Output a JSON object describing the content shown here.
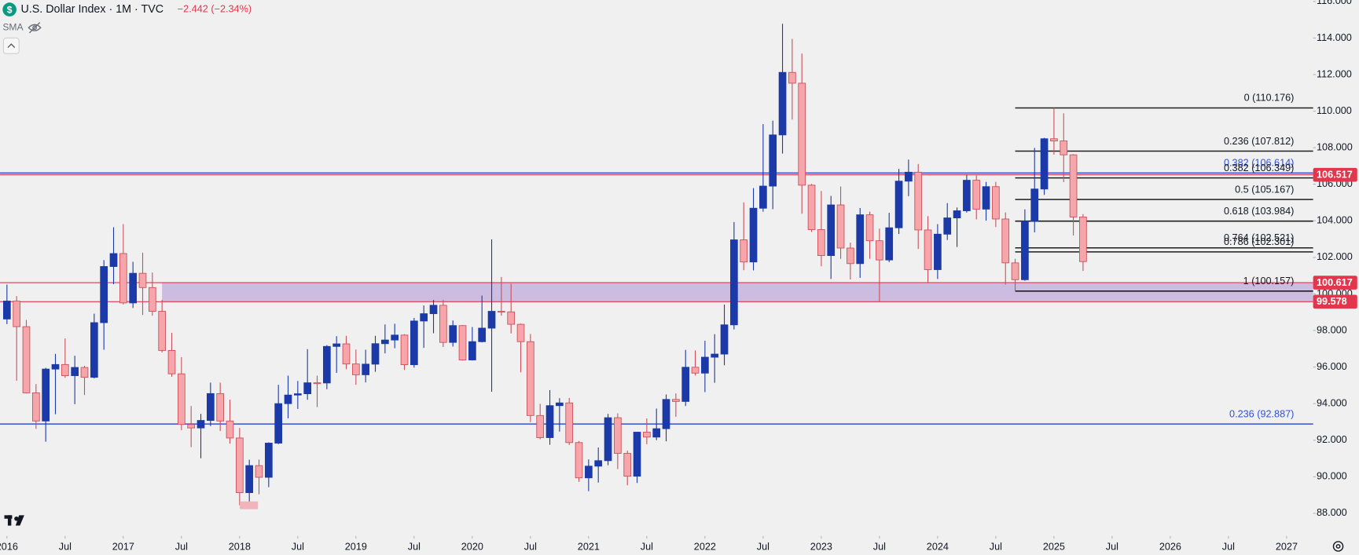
{
  "chart_data": {
    "type": "candlestick",
    "title": "U.S. Dollar Index · 1M · TVC",
    "change": "−2.442 (−2.34%)",
    "indicator": "SMA",
    "up_color": "#1b3aa8",
    "down_color": "#f6a6aa",
    "down_border": "#c9505a",
    "x": [
      "2016-01",
      "2016-02",
      "2016-03",
      "2016-04",
      "2016-05",
      "2016-06",
      "2016-07",
      "2016-08",
      "2016-09",
      "2016-10",
      "2016-11",
      "2016-12",
      "2017-01",
      "2017-02",
      "2017-03",
      "2017-04",
      "2017-05",
      "2017-06",
      "2017-07",
      "2017-08",
      "2017-09",
      "2017-10",
      "2017-11",
      "2017-12",
      "2018-01",
      "2018-02",
      "2018-03",
      "2018-04",
      "2018-05",
      "2018-06",
      "2018-07",
      "2018-08",
      "2018-09",
      "2018-10",
      "2018-11",
      "2018-12",
      "2019-01",
      "2019-02",
      "2019-03",
      "2019-04",
      "2019-05",
      "2019-06",
      "2019-07",
      "2019-08",
      "2019-09",
      "2019-10",
      "2019-11",
      "2019-12",
      "2020-01",
      "2020-02",
      "2020-03",
      "2020-04",
      "2020-05",
      "2020-06",
      "2020-07",
      "2020-08",
      "2020-09",
      "2020-10",
      "2020-11",
      "2020-12",
      "2021-01",
      "2021-02",
      "2021-03",
      "2021-04",
      "2021-05",
      "2021-06",
      "2021-07",
      "2021-08",
      "2021-09",
      "2021-10",
      "2021-11",
      "2021-12",
      "2022-01",
      "2022-02",
      "2022-03",
      "2022-04",
      "2022-05",
      "2022-06",
      "2022-07",
      "2022-08",
      "2022-09",
      "2022-10",
      "2022-11",
      "2022-12",
      "2023-01",
      "2023-02",
      "2023-03",
      "2023-04",
      "2023-05",
      "2023-06",
      "2023-07",
      "2023-08",
      "2023-09",
      "2023-10",
      "2023-11",
      "2023-12",
      "2024-01",
      "2024-02",
      "2024-03",
      "2024-04",
      "2024-05",
      "2024-06",
      "2024-07",
      "2024-08",
      "2024-09",
      "2024-10",
      "2024-11",
      "2024-12",
      "2025-01",
      "2025-02",
      "2025-03",
      "2025-04"
    ],
    "open": [
      98.63,
      99.61,
      98.21,
      94.59,
      93.05,
      95.89,
      96.14,
      95.53,
      95.98,
      95.44,
      98.43,
      101.5,
      102.21,
      99.51,
      101.13,
      100.35,
      99.05,
      96.91,
      95.63,
      92.86,
      92.67,
      93.08,
      94.55,
      93.05,
      92.12,
      89.13,
      90.61,
      89.97,
      91.84,
      94.0,
      94.47,
      94.54,
      95.14,
      95.13,
      97.13,
      97.27,
      96.17,
      95.58,
      96.16,
      97.28,
      97.48,
      97.75,
      96.13,
      98.52,
      98.92,
      99.38,
      97.35,
      98.27,
      96.39,
      97.39,
      98.13,
      99.05,
      99.02,
      98.34,
      97.39,
      93.35,
      92.14,
      93.89,
      94.04,
      91.87,
      89.94,
      90.58,
      90.88,
      93.23,
      91.28,
      90.03,
      92.44,
      92.17,
      92.63,
      94.23,
      94.12,
      95.99,
      95.67,
      96.54,
      96.71,
      98.31,
      102.96,
      101.75,
      104.69,
      105.9,
      108.7,
      112.12,
      111.53,
      105.95,
      103.52,
      102.1,
      104.87,
      102.51,
      101.66,
      104.33,
      102.91,
      101.86,
      103.62,
      106.17,
      106.66,
      103.5,
      101.33,
      103.27,
      104.16,
      104.55,
      106.22,
      104.64,
      105.87,
      104.1,
      101.7,
      100.78,
      103.98,
      105.74,
      108.49,
      108.37,
      107.61,
      104.21
    ],
    "high": [
      100.51,
      99.88,
      98.58,
      95.07,
      95.96,
      96.72,
      97.57,
      96.62,
      96.07,
      98.92,
      101.85,
      103.65,
      103.82,
      101.76,
      102.26,
      101.17,
      99.68,
      97.87,
      96.54,
      93.87,
      93.44,
      95.15,
      95.15,
      94.22,
      92.67,
      90.93,
      90.94,
      91.88,
      95.03,
      95.53,
      95.24,
      96.98,
      95.53,
      97.2,
      97.69,
      97.71,
      96.96,
      96.95,
      97.71,
      98.33,
      98.37,
      97.8,
      98.69,
      99.37,
      99.67,
      99.67,
      98.55,
      98.3,
      98.19,
      99.91,
      102.99,
      100.93,
      100.56,
      98.38,
      97.81,
      93.99,
      94.74,
      94.3,
      94.31,
      91.96,
      90.95,
      91.6,
      93.44,
      93.47,
      91.43,
      92.45,
      93.19,
      93.73,
      94.5,
      94.56,
      96.94,
      96.91,
      97.44,
      97.8,
      99.42,
      103.93,
      105.01,
      105.79,
      109.29,
      109.48,
      114.78,
      113.95,
      113.15,
      106.02,
      105.63,
      105.36,
      105.88,
      102.81,
      104.7,
      104.5,
      103.57,
      104.44,
      106.84,
      107.35,
      107.11,
      104.26,
      103.82,
      104.97,
      104.73,
      106.52,
      106.49,
      106.13,
      106.13,
      104.46,
      101.92,
      104.63,
      107.99,
      108.54,
      110.18,
      109.88,
      107.65,
      104.37
    ],
    "low": [
      98.35,
      95.25,
      94.56,
      92.62,
      91.92,
      93.42,
      95.41,
      93.97,
      94.47,
      95.38,
      96.95,
      100.53,
      99.43,
      99.23,
      98.85,
      98.81,
      96.8,
      95.47,
      92.55,
      91.62,
      91.01,
      92.77,
      92.5,
      91.81,
      88.44,
      88.25,
      89.04,
      89.43,
      91.78,
      93.2,
      93.71,
      94.21,
      93.81,
      94.79,
      95.68,
      95.88,
      95.03,
      95.16,
      95.74,
      96.75,
      97.03,
      95.84,
      95.97,
      97.05,
      97.85,
      97.1,
      97.12,
      96.36,
      96.36,
      97.35,
      94.65,
      98.81,
      97.84,
      95.71,
      92.99,
      92.05,
      91.75,
      92.47,
      91.74,
      89.72,
      89.21,
      89.68,
      90.63,
      90.42,
      89.53,
      89.66,
      91.78,
      92.0,
      91.94,
      93.28,
      93.87,
      95.54,
      94.63,
      95.14,
      96.1,
      98.06,
      101.3,
      101.29,
      104.5,
      104.64,
      107.68,
      109.54,
      104.39,
      103.39,
      101.51,
      100.82,
      101.92,
      100.79,
      100.88,
      101.92,
      99.58,
      101.74,
      103.28,
      105.35,
      102.46,
      100.62,
      100.82,
      102.95,
      102.57,
      104.45,
      104.08,
      104.01,
      103.66,
      100.51,
      100.16,
      100.72,
      103.37,
      105.42,
      107.62,
      106.12,
      103.2,
      101.26
    ],
    "close": [
      99.61,
      98.21,
      94.59,
      93.05,
      95.89,
      96.14,
      95.53,
      95.98,
      95.44,
      98.43,
      101.5,
      102.21,
      99.51,
      101.13,
      100.35,
      99.05,
      96.91,
      95.63,
      92.86,
      92.67,
      93.08,
      94.55,
      93.05,
      92.12,
      89.13,
      90.61,
      89.97,
      91.84,
      94.0,
      94.47,
      94.54,
      95.14,
      95.13,
      97.13,
      97.27,
      96.17,
      95.58,
      96.16,
      97.28,
      97.48,
      97.75,
      96.13,
      98.52,
      98.92,
      99.38,
      97.35,
      98.27,
      96.39,
      97.39,
      98.13,
      99.05,
      99.02,
      98.34,
      97.39,
      93.35,
      92.14,
      93.89,
      94.04,
      91.87,
      89.94,
      90.58,
      90.88,
      93.23,
      91.28,
      90.03,
      92.44,
      92.17,
      92.63,
      94.23,
      94.12,
      95.99,
      95.67,
      96.54,
      96.71,
      98.31,
      102.96,
      101.75,
      104.69,
      105.9,
      108.7,
      112.12,
      111.53,
      105.95,
      103.52,
      102.1,
      104.87,
      102.51,
      101.66,
      104.33,
      102.91,
      101.86,
      103.62,
      106.17,
      106.66,
      103.5,
      101.33,
      103.27,
      104.16,
      104.55,
      106.22,
      104.64,
      105.87,
      104.1,
      101.7,
      100.78,
      103.98,
      105.74,
      108.49,
      108.37,
      107.61,
      104.21,
      101.77
    ],
    "ylim": [
      86.76,
      116.08
    ],
    "yticks": [
      {
        "value": 88,
        "label": "88.000"
      },
      {
        "value": 90,
        "label": "90.000"
      },
      {
        "value": 92,
        "label": "92.000"
      },
      {
        "value": 94,
        "label": "94.000"
      },
      {
        "value": 96,
        "label": "96.000"
      },
      {
        "value": 98,
        "label": "98.000"
      },
      {
        "value": 100,
        "label": "100.000"
      },
      {
        "value": 102,
        "label": "102.000"
      },
      {
        "value": 104,
        "label": "104.000"
      },
      {
        "value": 106,
        "label": "106.000"
      },
      {
        "value": 108,
        "label": "108.000"
      },
      {
        "value": 110,
        "label": "110.000"
      },
      {
        "value": 112,
        "label": "112.000"
      },
      {
        "value": 114,
        "label": "114.000"
      },
      {
        "value": 116,
        "label": "116.000"
      }
    ],
    "xticks": [
      {
        "value": "2016-01",
        "label": "2016"
      },
      {
        "value": "2016-07",
        "label": "Jul"
      },
      {
        "value": "2017-01",
        "label": "2017"
      },
      {
        "value": "2017-07",
        "label": "Jul"
      },
      {
        "value": "2018-01",
        "label": "2018"
      },
      {
        "value": "2018-07",
        "label": "Jul"
      },
      {
        "value": "2019-01",
        "label": "2019"
      },
      {
        "value": "2019-07",
        "label": "Jul"
      },
      {
        "value": "2020-01",
        "label": "2020"
      },
      {
        "value": "2020-07",
        "label": "Jul"
      },
      {
        "value": "2021-01",
        "label": "2021"
      },
      {
        "value": "2021-07",
        "label": "Jul"
      },
      {
        "value": "2022-01",
        "label": "2022"
      },
      {
        "value": "2022-07",
        "label": "Jul"
      },
      {
        "value": "2023-01",
        "label": "2023"
      },
      {
        "value": "2023-07",
        "label": "Jul"
      },
      {
        "value": "2024-01",
        "label": "2024"
      },
      {
        "value": "2024-07",
        "label": "Jul"
      },
      {
        "value": "2025-01",
        "label": "2025"
      },
      {
        "value": "2025-07",
        "label": "Jul"
      },
      {
        "value": "2026-01",
        "label": "2026"
      },
      {
        "value": "2026-07",
        "label": "Jul"
      },
      {
        "value": "2027-01",
        "label": "2027"
      }
    ],
    "lines": [
      {
        "value": 106.614,
        "label": "0.382 (106.614)",
        "color": "#2f52d8"
      },
      {
        "value": 92.887,
        "label": "0.236 (92.887)",
        "color": "#2f52d8"
      }
    ],
    "level_color": "#e2364c",
    "levels": [
      106.517
    ],
    "zone": {
      "high": 100.617,
      "low": 99.578,
      "start": "2017-05",
      "color": "#c6b6de"
    },
    "fib": {
      "start": "2024-09",
      "color": "#1e1e1e",
      "levels": [
        {
          "value": 110.176,
          "label": "0 (110.176)"
        },
        {
          "value": 107.812,
          "label": "0.236 (107.812)"
        },
        {
          "value": 106.349,
          "label": "0.382 (106.349)"
        },
        {
          "value": 105.167,
          "label": "0.5 (105.167)"
        },
        {
          "value": 103.984,
          "label": "0.618 (103.984)"
        },
        {
          "value": 102.521,
          "label": "0.764 (102.521)"
        },
        {
          "value": 102.301,
          "label": "0.786 (102.301)"
        },
        {
          "value": 100.157,
          "label": "1 (100.157)"
        }
      ]
    }
  }
}
